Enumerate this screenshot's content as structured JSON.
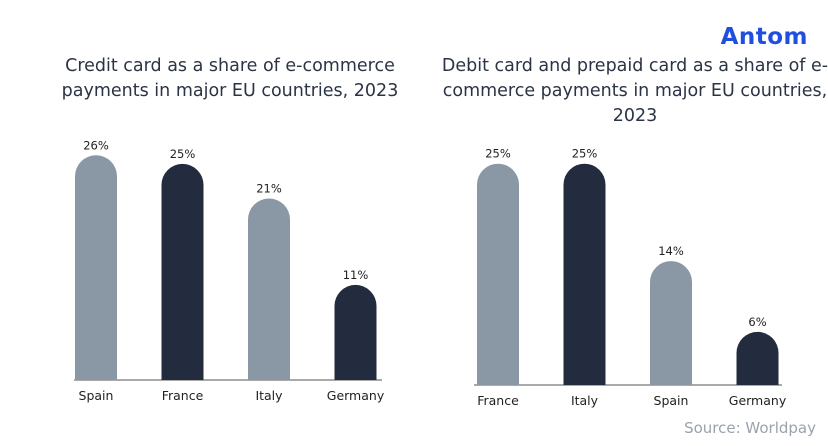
{
  "brand": {
    "logo_text": "Antom"
  },
  "source": "Source: Worldpay",
  "colors": {
    "light_bar": "#8a97a5",
    "dark_bar": "#232c3e",
    "logo": "#1f4fe0"
  },
  "chart_data": [
    {
      "type": "bar",
      "title": "Credit card as a share of e-commerce payments in major EU countries, 2023",
      "categories": [
        "Spain",
        "France",
        "Italy",
        "Germany"
      ],
      "values": [
        26,
        25,
        21,
        11
      ],
      "value_labels": [
        "26%",
        "25%",
        "21%",
        "11%"
      ],
      "bar_colors": [
        "#8a97a5",
        "#232c3e",
        "#8a97a5",
        "#232c3e"
      ],
      "ylim": [
        0,
        28
      ],
      "grid": false,
      "legend": "none"
    },
    {
      "type": "bar",
      "title": "Debit card and prepaid card as a share of e-commerce payments in major EU countries, 2023",
      "categories": [
        "France",
        "Italy",
        "Spain",
        "Germany"
      ],
      "values": [
        25,
        25,
        14,
        6
      ],
      "value_labels": [
        "25%",
        "25%",
        "14%",
        "6%"
      ],
      "bar_colors": [
        "#8a97a5",
        "#232c3e",
        "#8a97a5",
        "#232c3e"
      ],
      "ylim": [
        0,
        27
      ],
      "grid": false,
      "legend": "none"
    }
  ]
}
